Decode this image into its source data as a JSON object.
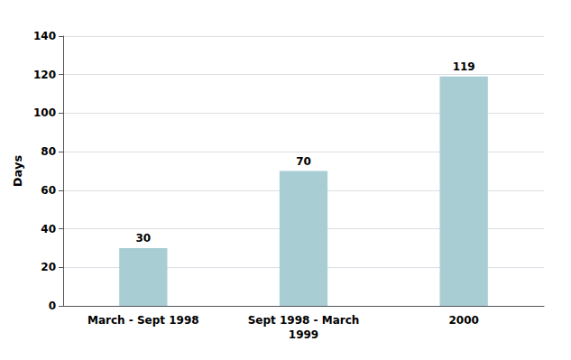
{
  "chart_data": {
    "type": "bar",
    "categories": [
      "March - Sept 1998",
      "Sept 1998 - March\n1999",
      "2000"
    ],
    "values": [
      30,
      70,
      119
    ],
    "color": "#a8ced4",
    "ylabel": "Days",
    "ylim": [
      0,
      140
    ],
    "yticks": [
      0,
      20,
      40,
      60,
      80,
      100,
      120,
      140
    ],
    "grid": true,
    "data_labels": true
  }
}
